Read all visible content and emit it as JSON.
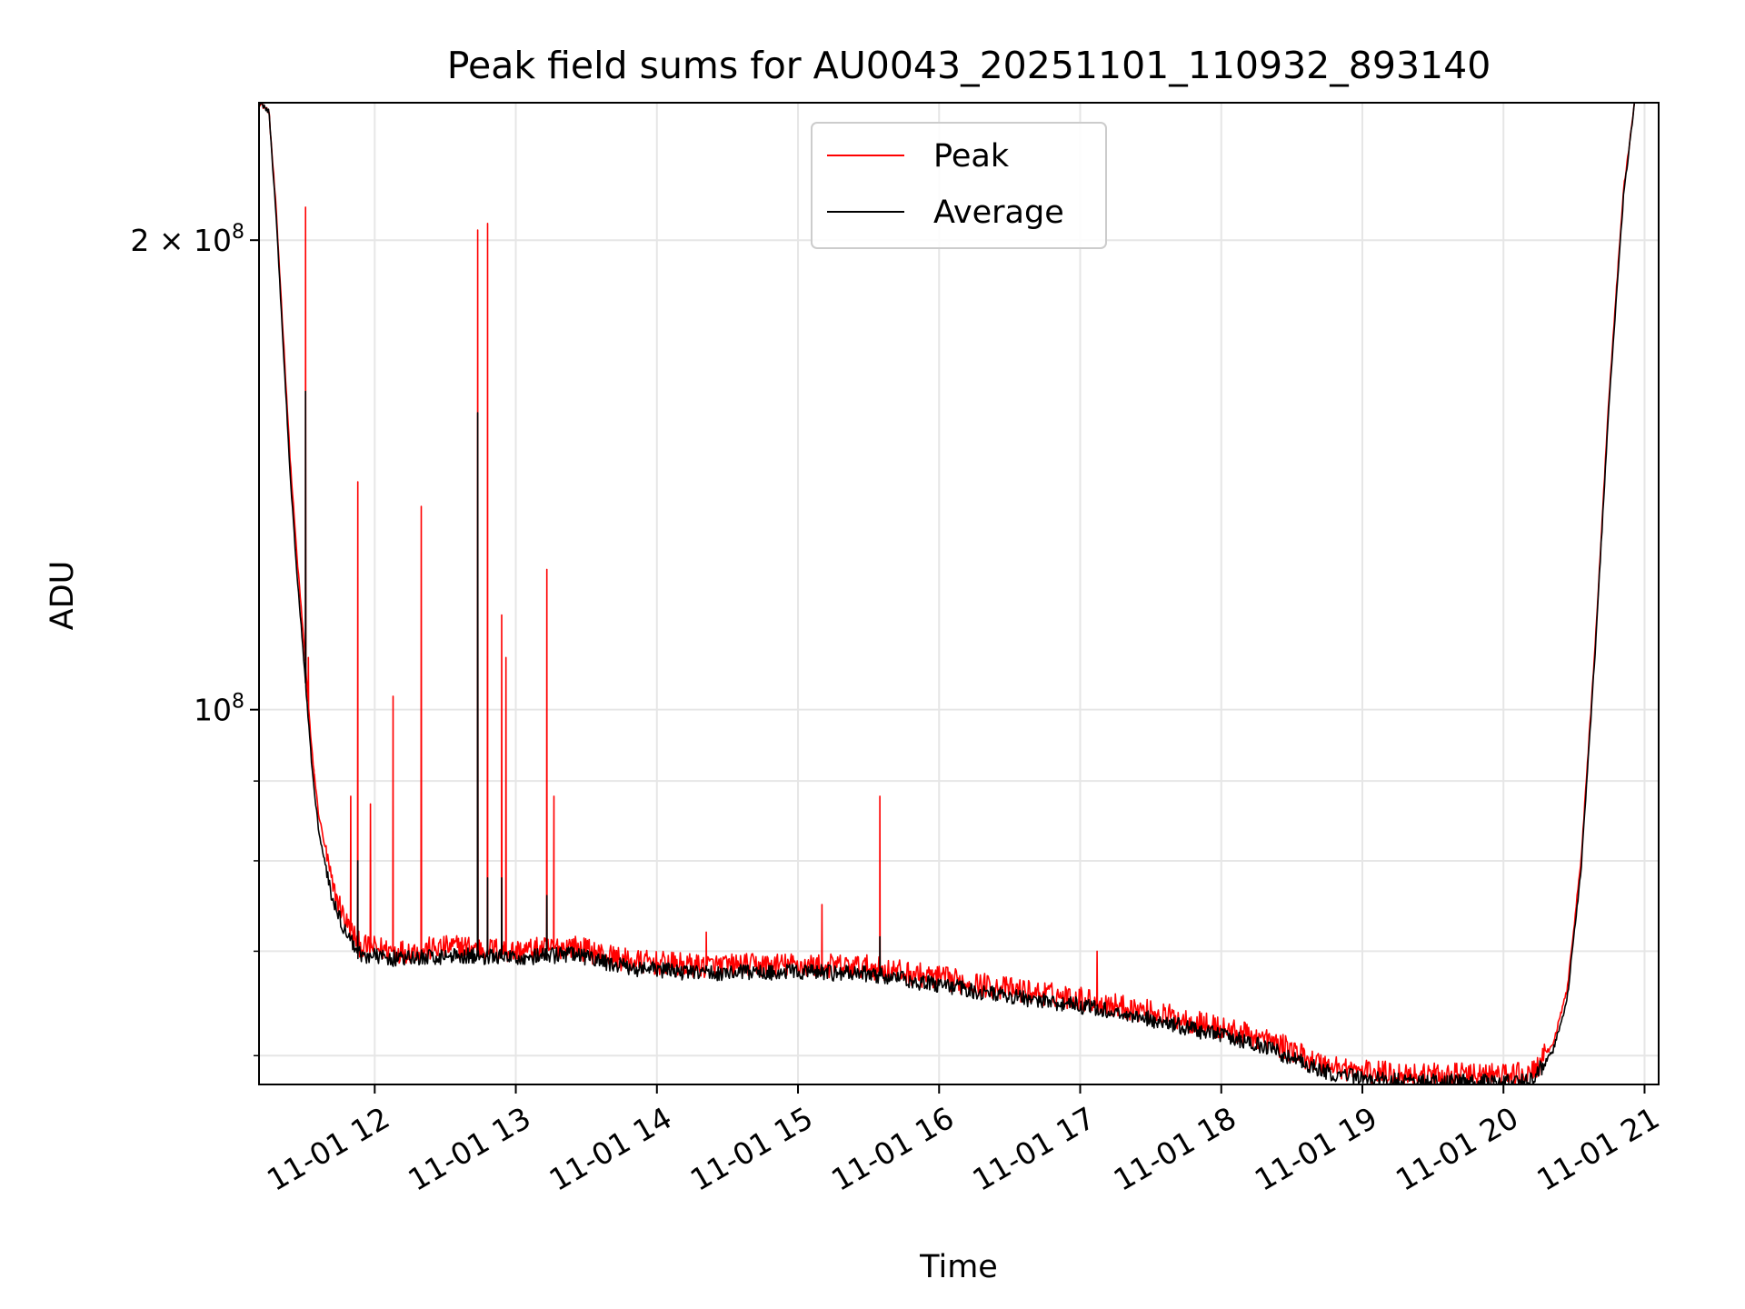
{
  "chart_data": {
    "type": "line",
    "title": "Peak field sums for AU0043_20251101_110932_893140",
    "xlabel": "Time",
    "ylabel": "ADU",
    "yscale": "log",
    "grid": true,
    "legend_position": "top-center",
    "x_unit": "hours since 00:00 on 11-01",
    "xlim": [
      11.18,
      21.1
    ],
    "ylim": [
      57500000,
      245000000
    ],
    "x_ticks": [
      {
        "value": 12,
        "label": "11-01 12"
      },
      {
        "value": 13,
        "label": "11-01 13"
      },
      {
        "value": 14,
        "label": "11-01 14"
      },
      {
        "value": 15,
        "label": "11-01 15"
      },
      {
        "value": 16,
        "label": "11-01 16"
      },
      {
        "value": 17,
        "label": "11-01 17"
      },
      {
        "value": 18,
        "label": "11-01 18"
      },
      {
        "value": 19,
        "label": "11-01 19"
      },
      {
        "value": 20,
        "label": "11-01 20"
      },
      {
        "value": 21,
        "label": "11-01 21"
      }
    ],
    "y_major_ticks": [
      {
        "value": 100000000,
        "base": "10",
        "exp": "8"
      },
      {
        "value": 200000000,
        "base": "2 × 10",
        "exp": "8"
      }
    ],
    "y_minor_ticks": [
      60000000,
      70000000,
      80000000,
      90000000
    ],
    "series": [
      {
        "name": "Peak",
        "color": "#ff0000",
        "baseline": [
          [
            11.18,
            245000000
          ],
          [
            11.25,
            242000000
          ],
          [
            11.3,
            210000000
          ],
          [
            11.35,
            175000000
          ],
          [
            11.4,
            145000000
          ],
          [
            11.45,
            125000000
          ],
          [
            11.5,
            110000000
          ],
          [
            11.55,
            95000000
          ],
          [
            11.6,
            86000000
          ],
          [
            11.7,
            77000000
          ],
          [
            11.8,
            73000000
          ],
          [
            11.9,
            70500000
          ],
          [
            12.2,
            70000000
          ],
          [
            12.6,
            70500000
          ],
          [
            13.0,
            70000000
          ],
          [
            13.4,
            70500000
          ],
          [
            13.8,
            69000000
          ],
          [
            14.3,
            68500000
          ],
          [
            15.0,
            68600000
          ],
          [
            15.5,
            68400000
          ],
          [
            16.0,
            67300000
          ],
          [
            16.5,
            66200000
          ],
          [
            17.0,
            65300000
          ],
          [
            17.5,
            64000000
          ],
          [
            18.0,
            62500000
          ],
          [
            18.3,
            61500000
          ],
          [
            18.5,
            60500000
          ],
          [
            18.7,
            59300000
          ],
          [
            19.0,
            58600000
          ],
          [
            19.5,
            58300000
          ],
          [
            20.0,
            58300000
          ],
          [
            20.2,
            58400000
          ],
          [
            20.35,
            61000000
          ],
          [
            20.45,
            66000000
          ],
          [
            20.55,
            80000000
          ],
          [
            20.65,
            110000000
          ],
          [
            20.75,
            160000000
          ],
          [
            20.85,
            215000000
          ],
          [
            20.93,
            245000000
          ]
        ],
        "spikes": [
          [
            11.51,
            210000000
          ],
          [
            11.53,
            108000000
          ],
          [
            11.57,
            90000000
          ],
          [
            11.83,
            88000000
          ],
          [
            11.88,
            140000000
          ],
          [
            11.97,
            87000000
          ],
          [
            12.13,
            102000000
          ],
          [
            12.33,
            135000000
          ],
          [
            12.73,
            203000000
          ],
          [
            12.8,
            205000000
          ],
          [
            12.9,
            115000000
          ],
          [
            12.93,
            108000000
          ],
          [
            13.22,
            123000000
          ],
          [
            13.27,
            88000000
          ],
          [
            14.35,
            72000000
          ],
          [
            15.17,
            75000000
          ],
          [
            15.58,
            88000000
          ],
          [
            17.12,
            70000000
          ]
        ]
      },
      {
        "name": "Average",
        "color": "#000000",
        "baseline": [
          [
            11.18,
            245000000
          ],
          [
            11.25,
            242000000
          ],
          [
            11.3,
            208000000
          ],
          [
            11.35,
            172000000
          ],
          [
            11.4,
            142000000
          ],
          [
            11.45,
            122000000
          ],
          [
            11.5,
            107000000
          ],
          [
            11.55,
            93000000
          ],
          [
            11.6,
            84000000
          ],
          [
            11.7,
            75500000
          ],
          [
            11.8,
            71800000
          ],
          [
            11.9,
            69600000
          ],
          [
            12.2,
            69200000
          ],
          [
            12.6,
            69600000
          ],
          [
            13.0,
            69300000
          ],
          [
            13.4,
            69700000
          ],
          [
            13.8,
            68300000
          ],
          [
            14.3,
            67800000
          ],
          [
            15.0,
            67900000
          ],
          [
            15.5,
            67700000
          ],
          [
            16.0,
            66600000
          ],
          [
            16.5,
            65500000
          ],
          [
            17.0,
            64600000
          ],
          [
            17.5,
            63300000
          ],
          [
            18.0,
            61800000
          ],
          [
            18.3,
            60800000
          ],
          [
            18.5,
            59800000
          ],
          [
            18.7,
            58700000
          ],
          [
            19.0,
            58000000
          ],
          [
            19.5,
            57700000
          ],
          [
            20.0,
            57700000
          ],
          [
            20.2,
            57800000
          ],
          [
            20.35,
            60400000
          ],
          [
            20.45,
            65000000
          ],
          [
            20.55,
            79000000
          ],
          [
            20.65,
            109000000
          ],
          [
            20.75,
            158000000
          ],
          [
            20.85,
            213000000
          ],
          [
            20.93,
            245000000
          ]
        ],
        "spikes": [
          [
            11.51,
            160000000
          ],
          [
            11.88,
            80000000
          ],
          [
            12.73,
            155000000
          ],
          [
            12.8,
            78000000
          ],
          [
            12.9,
            78000000
          ],
          [
            13.22,
            76000000
          ],
          [
            15.58,
            71500000
          ]
        ]
      }
    ]
  }
}
